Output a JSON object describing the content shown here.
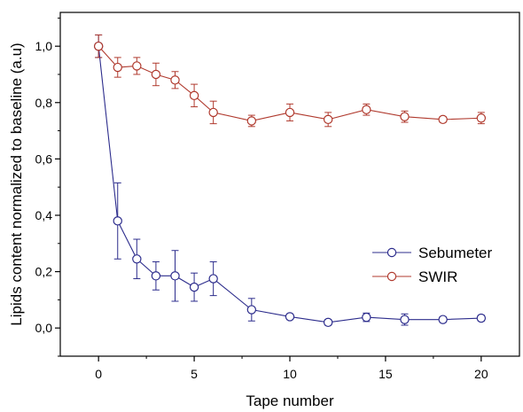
{
  "chart_data": {
    "type": "line",
    "xlabel": "Tape number",
    "ylabel": "Lipids content normalized to baseline (a.u)",
    "xlim": [
      -2,
      22
    ],
    "ylim": [
      -0.1,
      1.12
    ],
    "x_ticks": [
      0,
      5,
      10,
      15,
      20
    ],
    "x_tick_labels": [
      "0",
      "5",
      "10",
      "15",
      "20"
    ],
    "y_ticks": [
      0.0,
      0.2,
      0.4,
      0.6,
      0.8,
      1.0
    ],
    "y_tick_labels": [
      "0,0",
      "0,2",
      "0,4",
      "0,6",
      "0,8",
      "1,0"
    ],
    "legend_position": "right",
    "series": [
      {
        "name": "Sebumeter",
        "color": "#2c2c8c",
        "x": [
          0,
          1,
          2,
          3,
          4,
          5,
          6,
          8,
          10,
          12,
          14,
          16,
          18,
          20
        ],
        "y": [
          1.0,
          0.38,
          0.245,
          0.185,
          0.185,
          0.145,
          0.175,
          0.065,
          0.04,
          0.02,
          0.038,
          0.03,
          0.03,
          0.035
        ],
        "err": [
          0.04,
          0.135,
          0.07,
          0.05,
          0.09,
          0.05,
          0.06,
          0.04,
          0.01,
          0.01,
          0.015,
          0.02,
          0.01,
          0.01
        ]
      },
      {
        "name": "SWIR",
        "color": "#b03a2e",
        "x": [
          0,
          1,
          2,
          3,
          4,
          5,
          6,
          8,
          10,
          12,
          14,
          16,
          18,
          20
        ],
        "y": [
          1.0,
          0.925,
          0.93,
          0.9,
          0.88,
          0.825,
          0.765,
          0.735,
          0.765,
          0.74,
          0.775,
          0.75,
          0.74,
          0.745
        ],
        "err": [
          0.04,
          0.035,
          0.03,
          0.04,
          0.03,
          0.04,
          0.04,
          0.02,
          0.03,
          0.025,
          0.02,
          0.02,
          0.01,
          0.02
        ]
      }
    ]
  }
}
